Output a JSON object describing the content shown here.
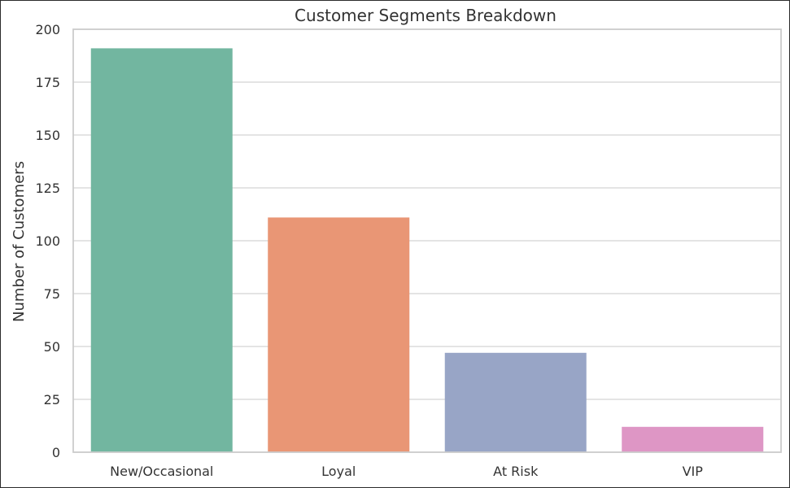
{
  "chart_data": {
    "type": "bar",
    "title": "Customer Segments Breakdown",
    "xlabel": "",
    "ylabel": "Number of Customers",
    "categories": [
      "New/Occasional",
      "Loyal",
      "At Risk",
      "VIP"
    ],
    "values": [
      191,
      111,
      47,
      12
    ],
    "colors": [
      "#72b6a0",
      "#e99675",
      "#98a5c6",
      "#de96c5"
    ],
    "ylim": [
      0,
      200
    ],
    "yticks": [
      0,
      25,
      50,
      75,
      100,
      125,
      150,
      175,
      200
    ],
    "grid": true,
    "legend": "none"
  }
}
